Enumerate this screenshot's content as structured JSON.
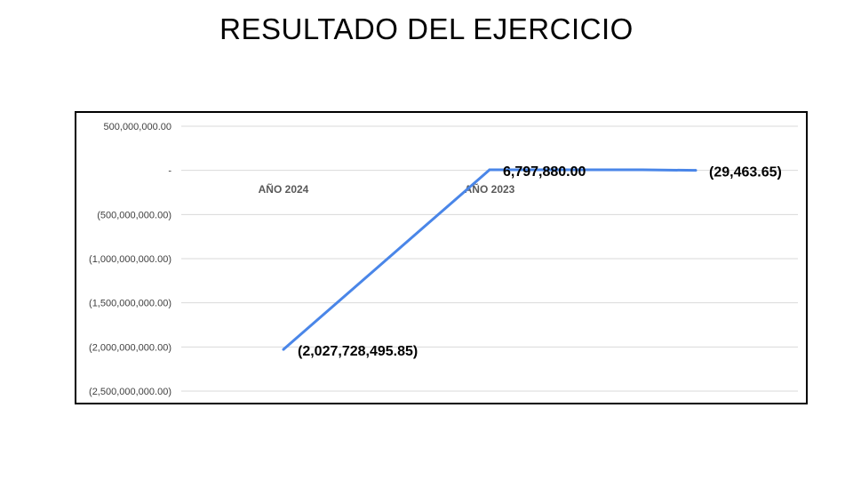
{
  "title": "RESULTADO DEL EJERCICIO",
  "chart_data": {
    "type": "line",
    "title": "RESULTADO DEL EJERCICIO",
    "xlabel": "",
    "ylabel": "",
    "ylim": [
      -2500000000,
      500000000
    ],
    "y_ticks": [
      500000000,
      0,
      -500000000,
      -1000000000,
      -1500000000,
      -2000000000,
      -2500000000
    ],
    "y_tick_labels": [
      "500,000,000.00",
      "-",
      "(500,000,000.00)",
      "(1,000,000,000.00)",
      "(1,500,000,000.00)",
      "(2,000,000,000.00)",
      "(2,500,000,000.00)"
    ],
    "categories": [
      "AÑO 2024",
      "AÑO 2023",
      ""
    ],
    "series": [
      {
        "color": "#4a86e8",
        "values": [
          -2027728495.85,
          6797880.0,
          -29463.65
        ],
        "data_labels": [
          "(2,027,728,495.85)",
          "6,797,880.00",
          "(29,463.65)"
        ]
      }
    ],
    "grid": true,
    "legend": "none"
  }
}
